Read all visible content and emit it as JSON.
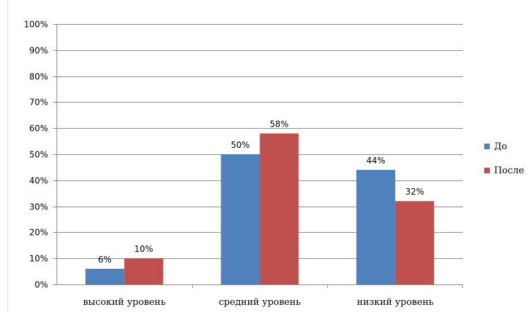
{
  "chart_data": {
    "type": "bar",
    "categories": [
      "высокий уровень",
      "средний уровень",
      "низкий уровень"
    ],
    "series": [
      {
        "name": "До",
        "values": [
          6,
          50,
          44
        ],
        "color": "#4F81BD"
      },
      {
        "name": "После",
        "values": [
          10,
          58,
          32
        ],
        "color": "#C0504D"
      }
    ],
    "data_labels": [
      [
        "6%",
        "50%",
        "44%"
      ],
      [
        "10%",
        "58%",
        "32%"
      ]
    ],
    "y_ticks": [
      "0%",
      "10%",
      "20%",
      "30%",
      "40%",
      "50%",
      "60%",
      "70%",
      "80%",
      "90%",
      "100%"
    ],
    "ylim": [
      0,
      100
    ],
    "grid": true,
    "legend_position": "right",
    "title": "",
    "xlabel": "",
    "ylabel": ""
  }
}
